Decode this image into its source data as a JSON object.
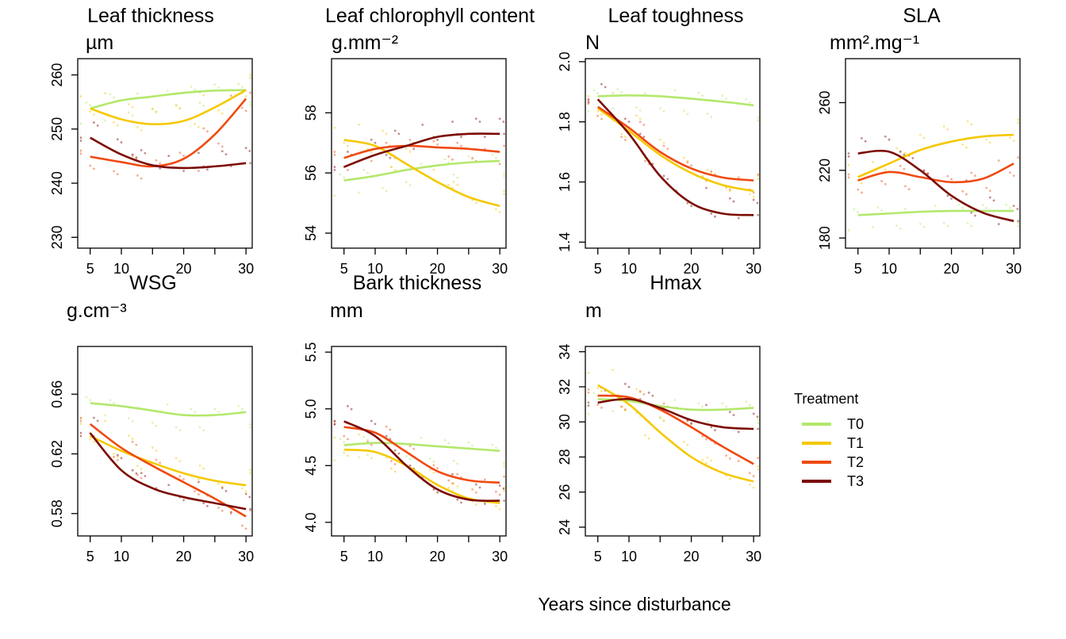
{
  "figure": {
    "xlabel": "Years since disturbance",
    "legend": {
      "title": "Treatment",
      "placement": "right"
    }
  },
  "chart_data": [
    {
      "type": "line",
      "title": "Leaf thickness",
      "unit": "µm",
      "xlim": [
        3,
        31
      ],
      "ylim": [
        228,
        263
      ],
      "xticks": [
        5,
        10,
        20,
        30
      ],
      "yticks": [
        230,
        240,
        250,
        260
      ],
      "grid": false,
      "series": [
        {
          "name": "T0",
          "color": "#b3e86b",
          "x": [
            5,
            10,
            15,
            20,
            25,
            30
          ],
          "values": [
            253.8,
            255.3,
            256.0,
            256.7,
            257.1,
            257.2
          ]
        },
        {
          "name": "T1",
          "color": "#f5c800",
          "x": [
            5,
            10,
            15,
            20,
            25,
            30
          ],
          "values": [
            253.8,
            251.8,
            250.9,
            251.5,
            254.0,
            257.2
          ]
        },
        {
          "name": "T2",
          "color": "#f04a10",
          "x": [
            5,
            10,
            15,
            20,
            25,
            30
          ],
          "values": [
            244.9,
            243.9,
            243.1,
            244.5,
            249.0,
            255.6
          ]
        },
        {
          "name": "T3",
          "color": "#7c0a02",
          "x": [
            5,
            10,
            15,
            20,
            25,
            30
          ],
          "values": [
            248.4,
            245.3,
            243.3,
            242.8,
            243.1,
            243.7
          ]
        }
      ]
    },
    {
      "type": "line",
      "title": "Leaf chlorophyll content",
      "unit": "g.mm⁻²",
      "xlim": [
        3,
        31
      ],
      "ylim": [
        53.5,
        59.8
      ],
      "xticks": [
        5,
        10,
        20,
        30
      ],
      "yticks": [
        54,
        56,
        58
      ],
      "grid": false,
      "series": [
        {
          "name": "T0",
          "color": "#b3e86b",
          "x": [
            5,
            10,
            15,
            20,
            25,
            30
          ],
          "values": [
            55.75,
            55.9,
            56.1,
            56.25,
            56.35,
            56.4
          ]
        },
        {
          "name": "T1",
          "color": "#f5c800",
          "x": [
            5,
            10,
            15,
            20,
            25,
            30
          ],
          "values": [
            57.1,
            56.9,
            56.3,
            55.7,
            55.2,
            54.9
          ]
        },
        {
          "name": "T2",
          "color": "#f04a10",
          "x": [
            5,
            10,
            15,
            20,
            25,
            30
          ],
          "values": [
            56.5,
            56.8,
            56.9,
            56.85,
            56.8,
            56.7
          ]
        },
        {
          "name": "T3",
          "color": "#7c0a02",
          "x": [
            5,
            10,
            15,
            20,
            25,
            30
          ],
          "values": [
            56.2,
            56.6,
            56.9,
            57.2,
            57.3,
            57.3
          ]
        }
      ]
    },
    {
      "type": "line",
      "title": "Leaf toughness",
      "unit": "N",
      "xlim": [
        3,
        31
      ],
      "ylim": [
        1.38,
        2.01
      ],
      "xticks": [
        5,
        10,
        20,
        30
      ],
      "yticks": [
        1.4,
        1.6,
        1.8,
        2.0
      ],
      "grid": false,
      "series": [
        {
          "name": "T0",
          "color": "#b3e86b",
          "x": [
            5,
            10,
            15,
            20,
            25,
            30
          ],
          "values": [
            1.885,
            1.888,
            1.885,
            1.877,
            1.867,
            1.855
          ]
        },
        {
          "name": "T1",
          "color": "#f5c800",
          "x": [
            5,
            10,
            15,
            20,
            25,
            30
          ],
          "values": [
            1.845,
            1.77,
            1.69,
            1.63,
            1.59,
            1.57
          ]
        },
        {
          "name": "T2",
          "color": "#f04a10",
          "x": [
            5,
            10,
            15,
            20,
            25,
            30
          ],
          "values": [
            1.85,
            1.78,
            1.7,
            1.645,
            1.615,
            1.605
          ]
        },
        {
          "name": "T3",
          "color": "#7c0a02",
          "x": [
            5,
            10,
            15,
            20,
            25,
            30
          ],
          "values": [
            1.875,
            1.76,
            1.62,
            1.53,
            1.495,
            1.49
          ]
        }
      ]
    },
    {
      "type": "line",
      "title": "SLA",
      "unit": "mm².mg⁻¹",
      "xlim": [
        3,
        31
      ],
      "ylim": [
        174,
        286
      ],
      "xticks": [
        5,
        10,
        20,
        30
      ],
      "yticks": [
        180,
        220,
        260
      ],
      "grid": false,
      "series": [
        {
          "name": "T0",
          "color": "#b3e86b",
          "x": [
            5,
            10,
            15,
            20,
            25,
            30
          ],
          "values": [
            193.5,
            194.5,
            195.5,
            196.0,
            196.0,
            196.0
          ]
        },
        {
          "name": "T1",
          "color": "#f5c800",
          "x": [
            5,
            10,
            15,
            20,
            25,
            30
          ],
          "values": [
            216.0,
            224.0,
            232.0,
            237.0,
            240.0,
            241.0
          ]
        },
        {
          "name": "T2",
          "color": "#f04a10",
          "x": [
            5,
            10,
            15,
            20,
            25,
            30
          ],
          "values": [
            214.0,
            219.0,
            216.0,
            213.0,
            215.0,
            224.0
          ]
        },
        {
          "name": "T3",
          "color": "#7c0a02",
          "x": [
            5,
            10,
            15,
            20,
            25,
            30
          ],
          "values": [
            230.0,
            231.0,
            220.0,
            205.0,
            195.0,
            190.0
          ]
        }
      ]
    },
    {
      "type": "line",
      "title": "WSG",
      "unit": "g.cm⁻³",
      "xlim": [
        3,
        31
      ],
      "ylim": [
        0.565,
        0.692
      ],
      "xticks": [
        5,
        10,
        20,
        30
      ],
      "yticks": [
        0.58,
        0.62,
        0.66
      ],
      "grid": false,
      "series": [
        {
          "name": "T0",
          "color": "#b3e86b",
          "x": [
            5,
            10,
            15,
            20,
            25,
            30
          ],
          "values": [
            0.654,
            0.652,
            0.649,
            0.646,
            0.646,
            0.648
          ]
        },
        {
          "name": "T1",
          "color": "#f5c800",
          "x": [
            5,
            10,
            15,
            20,
            25,
            30
          ],
          "values": [
            0.632,
            0.622,
            0.614,
            0.607,
            0.602,
            0.599
          ]
        },
        {
          "name": "T2",
          "color": "#f04a10",
          "x": [
            5,
            10,
            15,
            20,
            25,
            30
          ],
          "values": [
            0.64,
            0.624,
            0.612,
            0.601,
            0.59,
            0.578
          ]
        },
        {
          "name": "T3",
          "color": "#7c0a02",
          "x": [
            5,
            10,
            15,
            20,
            25,
            30
          ],
          "values": [
            0.634,
            0.609,
            0.597,
            0.591,
            0.587,
            0.583
          ]
        }
      ]
    },
    {
      "type": "line",
      "title": "Bark thickness",
      "unit": "mm",
      "xlim": [
        3,
        31
      ],
      "ylim": [
        3.88,
        5.55
      ],
      "xticks": [
        5,
        10,
        20,
        30
      ],
      "yticks": [
        4.0,
        4.5,
        5.0,
        5.5
      ],
      "grid": false,
      "series": [
        {
          "name": "T0",
          "color": "#b3e86b",
          "x": [
            5,
            10,
            15,
            20,
            25,
            30
          ],
          "values": [
            4.68,
            4.7,
            4.69,
            4.67,
            4.65,
            4.63
          ]
        },
        {
          "name": "T1",
          "color": "#f5c800",
          "x": [
            5,
            10,
            15,
            20,
            25,
            30
          ],
          "values": [
            4.64,
            4.62,
            4.5,
            4.33,
            4.21,
            4.17
          ]
        },
        {
          "name": "T2",
          "color": "#f04a10",
          "x": [
            5,
            10,
            15,
            20,
            25,
            30
          ],
          "values": [
            4.84,
            4.79,
            4.62,
            4.45,
            4.37,
            4.35
          ]
        },
        {
          "name": "T3",
          "color": "#7c0a02",
          "x": [
            5,
            10,
            15,
            20,
            25,
            30
          ],
          "values": [
            4.89,
            4.76,
            4.5,
            4.29,
            4.2,
            4.19
          ]
        }
      ]
    },
    {
      "type": "line",
      "title": "Hmax",
      "unit": "m",
      "xlim": [
        3,
        31
      ],
      "ylim": [
        23.5,
        34.3
      ],
      "xticks": [
        5,
        10,
        20,
        30
      ],
      "yticks": [
        24,
        26,
        28,
        30,
        32,
        34
      ],
      "grid": false,
      "series": [
        {
          "name": "T0",
          "color": "#b3e86b",
          "x": [
            5,
            10,
            15,
            20,
            25,
            30
          ],
          "values": [
            31.3,
            31.2,
            30.9,
            30.7,
            30.7,
            30.8
          ]
        },
        {
          "name": "T1",
          "color": "#f5c800",
          "x": [
            5,
            10,
            15,
            20,
            25,
            30
          ],
          "values": [
            32.1,
            31.0,
            29.4,
            28.0,
            27.1,
            26.6
          ]
        },
        {
          "name": "T2",
          "color": "#f04a10",
          "x": [
            5,
            10,
            15,
            20,
            25,
            30
          ],
          "values": [
            31.5,
            31.4,
            30.7,
            29.7,
            28.6,
            27.6
          ]
        },
        {
          "name": "T3",
          "color": "#7c0a02",
          "x": [
            5,
            10,
            15,
            20,
            25,
            30
          ],
          "values": [
            31.1,
            31.3,
            30.8,
            30.1,
            29.7,
            29.6
          ]
        }
      ]
    }
  ]
}
